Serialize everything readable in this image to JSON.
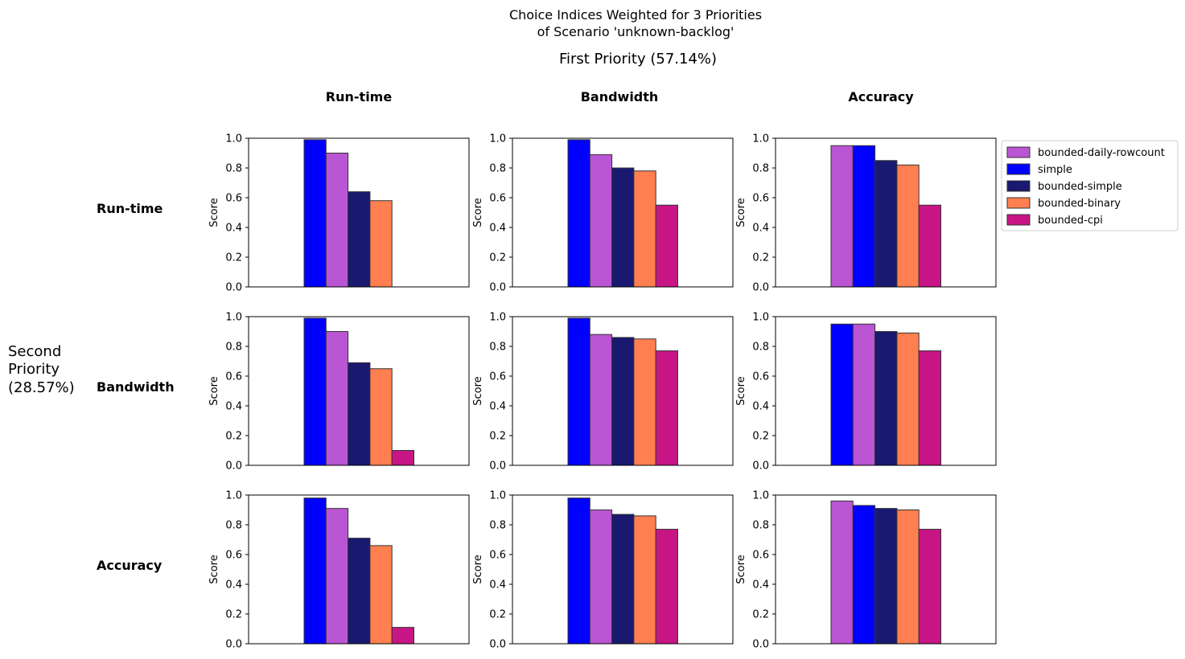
{
  "title_line1": "Choice Indices Weighted for 3 Priorities",
  "title_line2": "of Scenario 'unknown-backlog'",
  "first_priority_label": "First Priority (57.14%)",
  "second_priority_lines": [
    "Second",
    "Priority",
    "(28.57%)"
  ],
  "column_headers": [
    "Run-time",
    "Bandwidth",
    "Accuracy"
  ],
  "row_headers": [
    "Run-time",
    "Bandwidth",
    "Accuracy"
  ],
  "colors": {
    "bounded-daily-rowcount": "#ba55d3",
    "simple": "#0000ff",
    "bounded-simple": "#191970",
    "bounded-binary": "#ff7f50",
    "bounded-cpi": "#c71585"
  },
  "chart_data": {
    "type": "bar",
    "layout": "3x3 grid of bar subplots",
    "ylabel": "Score",
    "ylim": [
      0,
      1.0
    ],
    "yticks": [
      "0.0",
      "0.2",
      "0.4",
      "0.6",
      "0.8",
      "1.0"
    ],
    "legend": {
      "placement": "right of top-right subplot",
      "entries": [
        "bounded-daily-rowcount",
        "simple",
        "bounded-simple",
        "bounded-binary",
        "bounded-cpi"
      ]
    },
    "subplots": [
      {
        "row": "Run-time",
        "col": "Run-time",
        "bars": [
          {
            "series": "simple",
            "value": 0.99
          },
          {
            "series": "bounded-daily-rowcount",
            "value": 0.9
          },
          {
            "series": "bounded-simple",
            "value": 0.64
          },
          {
            "series": "bounded-binary",
            "value": 0.58
          },
          {
            "series": "bounded-cpi",
            "value": 0.0
          }
        ]
      },
      {
        "row": "Run-time",
        "col": "Bandwidth",
        "bars": [
          {
            "series": "simple",
            "value": 0.99
          },
          {
            "series": "bounded-daily-rowcount",
            "value": 0.89
          },
          {
            "series": "bounded-simple",
            "value": 0.8
          },
          {
            "series": "bounded-binary",
            "value": 0.78
          },
          {
            "series": "bounded-cpi",
            "value": 0.55
          }
        ]
      },
      {
        "row": "Run-time",
        "col": "Accuracy",
        "bars": [
          {
            "series": "bounded-daily-rowcount",
            "value": 0.95
          },
          {
            "series": "simple",
            "value": 0.95
          },
          {
            "series": "bounded-simple",
            "value": 0.85
          },
          {
            "series": "bounded-binary",
            "value": 0.82
          },
          {
            "series": "bounded-cpi",
            "value": 0.55
          }
        ]
      },
      {
        "row": "Bandwidth",
        "col": "Run-time",
        "bars": [
          {
            "series": "simple",
            "value": 0.99
          },
          {
            "series": "bounded-daily-rowcount",
            "value": 0.9
          },
          {
            "series": "bounded-simple",
            "value": 0.69
          },
          {
            "series": "bounded-binary",
            "value": 0.65
          },
          {
            "series": "bounded-cpi",
            "value": 0.1
          }
        ]
      },
      {
        "row": "Bandwidth",
        "col": "Bandwidth",
        "bars": [
          {
            "series": "simple",
            "value": 0.99
          },
          {
            "series": "bounded-daily-rowcount",
            "value": 0.88
          },
          {
            "series": "bounded-simple",
            "value": 0.86
          },
          {
            "series": "bounded-binary",
            "value": 0.85
          },
          {
            "series": "bounded-cpi",
            "value": 0.77
          }
        ]
      },
      {
        "row": "Bandwidth",
        "col": "Accuracy",
        "bars": [
          {
            "series": "simple",
            "value": 0.95
          },
          {
            "series": "bounded-daily-rowcount",
            "value": 0.95
          },
          {
            "series": "bounded-simple",
            "value": 0.9
          },
          {
            "series": "bounded-binary",
            "value": 0.89
          },
          {
            "series": "bounded-cpi",
            "value": 0.77
          }
        ]
      },
      {
        "row": "Accuracy",
        "col": "Run-time",
        "bars": [
          {
            "series": "simple",
            "value": 0.98
          },
          {
            "series": "bounded-daily-rowcount",
            "value": 0.91
          },
          {
            "series": "bounded-simple",
            "value": 0.71
          },
          {
            "series": "bounded-binary",
            "value": 0.66
          },
          {
            "series": "bounded-cpi",
            "value": 0.11
          }
        ]
      },
      {
        "row": "Accuracy",
        "col": "Bandwidth",
        "bars": [
          {
            "series": "simple",
            "value": 0.98
          },
          {
            "series": "bounded-daily-rowcount",
            "value": 0.9
          },
          {
            "series": "bounded-simple",
            "value": 0.87
          },
          {
            "series": "bounded-binary",
            "value": 0.86
          },
          {
            "series": "bounded-cpi",
            "value": 0.77
          }
        ]
      },
      {
        "row": "Accuracy",
        "col": "Accuracy",
        "bars": [
          {
            "series": "bounded-daily-rowcount",
            "value": 0.96
          },
          {
            "series": "simple",
            "value": 0.93
          },
          {
            "series": "bounded-simple",
            "value": 0.91
          },
          {
            "series": "bounded-binary",
            "value": 0.9
          },
          {
            "series": "bounded-cpi",
            "value": 0.77
          }
        ]
      }
    ]
  }
}
